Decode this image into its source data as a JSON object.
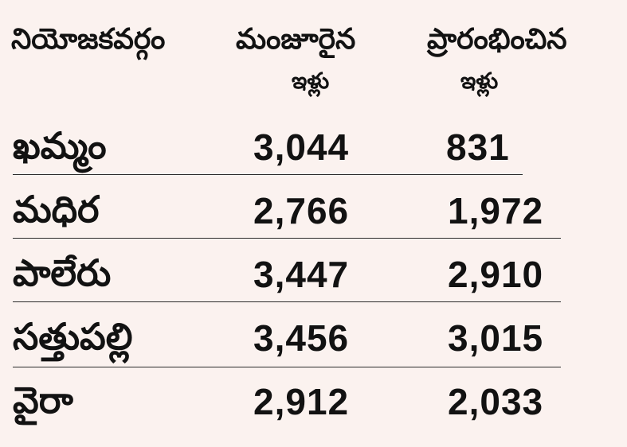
{
  "headers": {
    "constituency": "నియోజకవర్గం",
    "sanctioned_line1": "మంజూరైన",
    "sanctioned_line2": "ఇళ్లు",
    "started_line1": "ప్రారంభించిన",
    "started_line2": "ఇళ్లు"
  },
  "rows": [
    {
      "name": "ఖమ్మం",
      "sanctioned": "3,044",
      "started": "831"
    },
    {
      "name": "మధిర",
      "sanctioned": "2,766",
      "started": "1,972"
    },
    {
      "name": "పాలేరు",
      "sanctioned": "3,447",
      "started": "2,910"
    },
    {
      "name": "సత్తుపల్లి",
      "sanctioned": "3,456",
      "started": "3,015"
    },
    {
      "name": "వైరా",
      "sanctioned": "2,912",
      "started": "2,033"
    }
  ]
}
